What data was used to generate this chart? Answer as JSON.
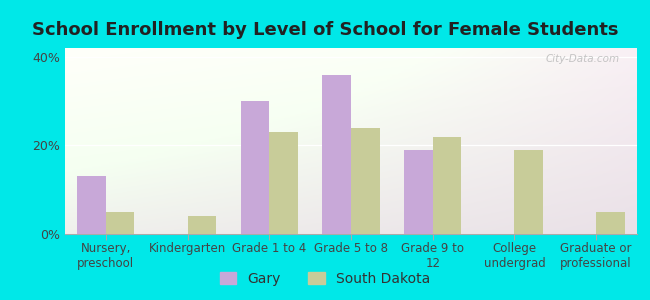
{
  "title": "School Enrollment by Level of School for Female Students",
  "categories": [
    "Nursery,\npreschool",
    "Kindergarten",
    "Grade 1 to 4",
    "Grade 5 to 8",
    "Grade 9 to\n12",
    "College\nundergrad",
    "Graduate or\nprofessional"
  ],
  "gary": [
    13,
    0,
    30,
    36,
    19,
    0,
    0
  ],
  "south_dakota": [
    5,
    4,
    23,
    24,
    22,
    19,
    5
  ],
  "gary_color": "#c8a8d8",
  "sd_color": "#c8cc99",
  "outer_background": "#00e8e8",
  "yticks": [
    0,
    20,
    40
  ],
  "ylim": [
    0,
    42
  ],
  "bar_width": 0.35,
  "legend_gary": "Gary",
  "legend_sd": "South Dakota",
  "watermark": "City-Data.com",
  "title_fontsize": 13,
  "tick_fontsize": 8.5
}
